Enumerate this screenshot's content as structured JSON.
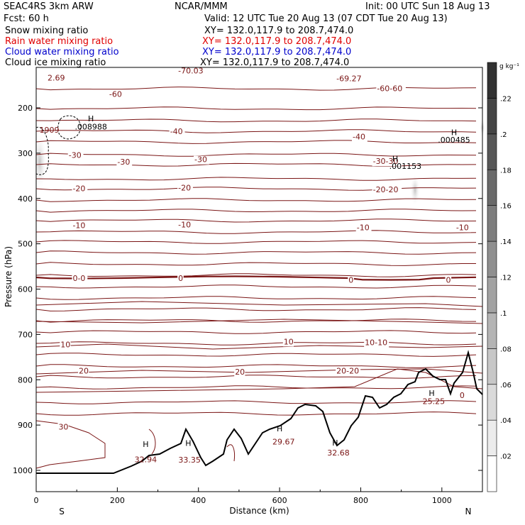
{
  "header": {
    "model": "SEAC4RS   3km ARW",
    "center": "NCAR/MMM",
    "init": "Init: 00 UTC Sun 18 Aug 13",
    "fcst": "Fcst:    60 h",
    "valid": "Valid: 12 UTC Tue 20 Aug 13 (07 CDT Tue 20 Aug 13)"
  },
  "fields": [
    {
      "label": "Snow mixing ratio",
      "xy": "XY= 132.0,117.9 to 208.7,474.0",
      "color": "#000000"
    },
    {
      "label": "Rain water mixing ratio",
      "xy": "XY= 132.0,117.9 to 208.7,474.0",
      "color": "#e00000"
    },
    {
      "label": "Cloud water mixing ratio",
      "xy": "XY= 132.0,117.9 to 208.7,474.0",
      "color": "#0000cc"
    },
    {
      "label": "Cloud ice mixing ratio",
      "xy": "XY= 132.0,117.9 to 208.7,474.0",
      "color": "#000000"
    }
  ],
  "colorbar": {
    "unit": "g kg⁻¹",
    "ticks": [
      ".02",
      ".04",
      ".06",
      ".08",
      ".1",
      ".12",
      ".14",
      ".16",
      ".18",
      ".2",
      ".22"
    ]
  },
  "chart_data": {
    "type": "line",
    "xlabel": "Distance (km)",
    "ylabel": "Pressure (hPa)",
    "xlim": [
      0,
      1100
    ],
    "ylim": [
      1050,
      100
    ],
    "xticks": [
      0,
      200,
      400,
      600,
      800,
      1000
    ],
    "yticks": [
      200,
      300,
      400,
      500,
      600,
      700,
      800,
      900,
      1000
    ],
    "endpoint_labels": {
      "left": "S",
      "right": "N"
    },
    "isotherm_labels": [
      {
        "text": "-60",
        "x": 180,
        "p": 176
      },
      {
        "text": "-60-60",
        "x": 840,
        "p": 163
      },
      {
        "text": "-40",
        "x": 330,
        "p": 258
      },
      {
        "text": "-40",
        "x": 780,
        "p": 270
      },
      {
        "text": "-30",
        "x": 80,
        "p": 310
      },
      {
        "text": "-30",
        "x": 200,
        "p": 325
      },
      {
        "text": "-30",
        "x": 390,
        "p": 320
      },
      {
        "text": "-30-30",
        "x": 830,
        "p": 324
      },
      {
        "text": "-20",
        "x": 90,
        "p": 384
      },
      {
        "text": "-20",
        "x": 350,
        "p": 382
      },
      {
        "text": "-20-20",
        "x": 830,
        "p": 386
      },
      {
        "text": "-10",
        "x": 90,
        "p": 465
      },
      {
        "text": "-10",
        "x": 350,
        "p": 464
      },
      {
        "text": "-10",
        "x": 790,
        "p": 470
      },
      {
        "text": "-10",
        "x": 1035,
        "p": 470
      },
      {
        "text": "0-0",
        "x": 90,
        "p": 582
      },
      {
        "text": "0",
        "x": 350,
        "p": 582
      },
      {
        "text": "0",
        "x": 770,
        "p": 586
      },
      {
        "text": "0",
        "x": 1010,
        "p": 586
      },
      {
        "text": "10",
        "x": 60,
        "p": 728
      },
      {
        "text": "10",
        "x": 610,
        "p": 722
      },
      {
        "text": "10-10",
        "x": 810,
        "p": 724
      },
      {
        "text": "20",
        "x": 105,
        "p": 786
      },
      {
        "text": "20",
        "x": 490,
        "p": 789
      },
      {
        "text": "20-20",
        "x": 740,
        "p": 786
      },
      {
        "text": "30",
        "x": 55,
        "p": 910
      }
    ],
    "extrema": [
      {
        "text": "H",
        "x": 135,
        "p": 230
      },
      {
        "text": ".008988",
        "x": 135,
        "p": 248
      },
      {
        "text": "H",
        "x": 1030,
        "p": 260
      },
      {
        "text": ".000485",
        "x": 1030,
        "p": 277
      },
      {
        "text": "H",
        "x": 885,
        "p": 318
      },
      {
        "text": ".001153",
        "x": 910,
        "p": 335
      },
      {
        "text": "H",
        "x": 270,
        "p": 948
      },
      {
        "text": "32.94",
        "x": 270,
        "p": 982
      },
      {
        "text": "H",
        "x": 375,
        "p": 946
      },
      {
        "text": "33.35",
        "x": 378,
        "p": 983
      },
      {
        "text": "H",
        "x": 600,
        "p": 914
      },
      {
        "text": "29.67",
        "x": 610,
        "p": 943
      },
      {
        "text": "H",
        "x": 737,
        "p": 945
      },
      {
        "text": "32.68",
        "x": 745,
        "p": 967
      },
      {
        "text": "H",
        "x": 975,
        "p": 836
      },
      {
        "text": "25.25",
        "x": 980,
        "p": 854
      },
      {
        "text": "0",
        "x": 1050,
        "p": 840
      }
    ],
    "top_labels": [
      {
        "text": "2.69",
        "x": 28,
        "p": 140
      },
      {
        "text": "-69.27",
        "x": 740,
        "p": 141
      },
      {
        "text": "-70.03",
        "x": 350,
        "p": 124
      },
      {
        "text": "1909",
        "x": 8,
        "p": 255
      }
    ]
  }
}
